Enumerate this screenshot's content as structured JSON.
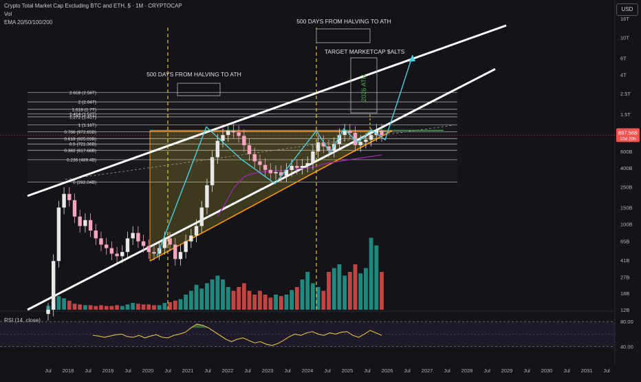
{
  "header": {
    "title": "Crypto Total Market Cap Excluding BTC and ETH, $ · 1M · CRYPTOCAP",
    "vol": "Vol",
    "ema": "EMA 20/50/100/200"
  },
  "currency_button": "USD",
  "annotations": {
    "halving_left": "500 DAYS FROM HALVING TO ATH",
    "halving_right": "500 DAYS FROM HALVING TO ATH",
    "target": "TARGET MARKETCAP $ALTS",
    "ath_label": "2026 ATH"
  },
  "rsi": {
    "label": "RSI (14, close)",
    "ticks": [
      "80.00",
      "40.00"
    ]
  },
  "price_tag": {
    "value": "897.56B",
    "sub": "10d 20h"
  },
  "colors": {
    "background": "#131318",
    "up": "#e8e8e8",
    "down": "#f7a6c0",
    "vol_up": "#26a69a",
    "vol_down": "#ef5350",
    "fib_fill": "#ffeb3b",
    "trendline": "#ffffff",
    "path": "#4dd0e1",
    "rsi_line": "#e0c341",
    "rsi_shade": "#7e57c2",
    "ema": "#9c27b0",
    "dashed_vertical": "#ffeb3b"
  },
  "chart_data": {
    "type": "candlestick",
    "title": "Crypto Total Market Cap Excluding BTC and ETH, $ · 1M · CRYPTOCAP",
    "y_scale": "log",
    "y_ticks": [
      "16T",
      "10T",
      "6T",
      "4T",
      "2.5T",
      "1.5T",
      "1T",
      "600B",
      "400B",
      "250B",
      "150B",
      "100B",
      "65B",
      "41B",
      "27B",
      "18B",
      "12B"
    ],
    "x_ticks": [
      "Jul",
      "2018",
      "Jul",
      "2019",
      "Jul",
      "2020",
      "Jul",
      "2021",
      "Jul",
      "2022",
      "Jul",
      "2023",
      "Jul",
      "2024",
      "Jul",
      "2025",
      "Jul",
      "2026",
      "Jul",
      "2027",
      "Jul",
      "2028",
      "Jul",
      "2029",
      "Jul",
      "2030",
      "Jul",
      "2031",
      "Jul"
    ],
    "fib_levels": [
      {
        "ratio": "2.618",
        "label": "2.618 (2.58T)"
      },
      {
        "ratio": "2",
        "label": "2 (2.04T)"
      },
      {
        "ratio": "1.618",
        "label": "1.618 (1.7T)"
      },
      {
        "ratio": "1.414",
        "label": "1.414 (1.52T)"
      },
      {
        "ratio": "1.272",
        "label": "1.272 (1.41T)"
      },
      {
        "ratio": "1",
        "label": "1 (1.16T)"
      },
      {
        "ratio": "0.786",
        "label": "0.786 (972.65B)"
      },
      {
        "ratio": "0.618",
        "label": "0.618 (825.03B)"
      },
      {
        "ratio": "0.5",
        "label": "0.5 (721.36B)"
      },
      {
        "ratio": "0.382",
        "label": "0.382 (617.68B)"
      },
      {
        "ratio": "0.236",
        "label": "0.236 (489.4B)"
      },
      {
        "ratio": "0",
        "label": "0 (282.04B)"
      }
    ],
    "current_price": "897.56B",
    "candles_approx_close_B": [
      12,
      40,
      150,
      210,
      180,
      120,
      95,
      110,
      85,
      70,
      60,
      55,
      48,
      45,
      50,
      70,
      80,
      65,
      58,
      50,
      48,
      55,
      70,
      60,
      42,
      50,
      65,
      75,
      95,
      150,
      260,
      520,
      780,
      900,
      1000,
      960,
      880,
      700,
      560,
      470,
      430,
      380,
      350,
      360,
      330,
      380,
      420,
      400,
      420,
      450,
      600,
      750,
      680,
      610,
      720,
      900,
      1000,
      950,
      700,
      760,
      800,
      900,
      1000,
      897
    ],
    "volume_relative": [
      0.05,
      0.1,
      0.18,
      0.15,
      0.12,
      0.08,
      0.07,
      0.06,
      0.06,
      0.05,
      0.06,
      0.05,
      0.05,
      0.06,
      0.05,
      0.07,
      0.09,
      0.08,
      0.07,
      0.07,
      0.06,
      0.06,
      0.09,
      0.1,
      0.12,
      0.14,
      0.2,
      0.25,
      0.33,
      0.28,
      0.35,
      0.4,
      0.45,
      0.4,
      0.3,
      0.25,
      0.3,
      0.35,
      0.25,
      0.2,
      0.25,
      0.2,
      0.16,
      0.2,
      0.18,
      0.2,
      0.26,
      0.3,
      0.4,
      0.5,
      0.35,
      0.3,
      0.25,
      0.5,
      0.55,
      0.6,
      0.45,
      0.5,
      0.6,
      0.48,
      0.55,
      0.95,
      0.85,
      0.5
    ],
    "rsi_values": [
      58,
      57,
      55,
      57,
      59,
      60,
      56,
      55,
      58,
      54,
      57,
      59,
      55,
      54,
      58,
      60,
      63,
      70,
      76,
      74,
      70,
      64,
      58,
      52,
      48,
      52,
      54,
      50,
      46,
      48,
      44,
      42,
      45,
      50,
      56,
      60,
      58,
      62,
      64,
      60,
      58,
      62,
      60,
      63,
      64,
      58,
      55,
      60,
      66,
      62,
      58
    ],
    "rsi_range": [
      20,
      90
    ]
  }
}
